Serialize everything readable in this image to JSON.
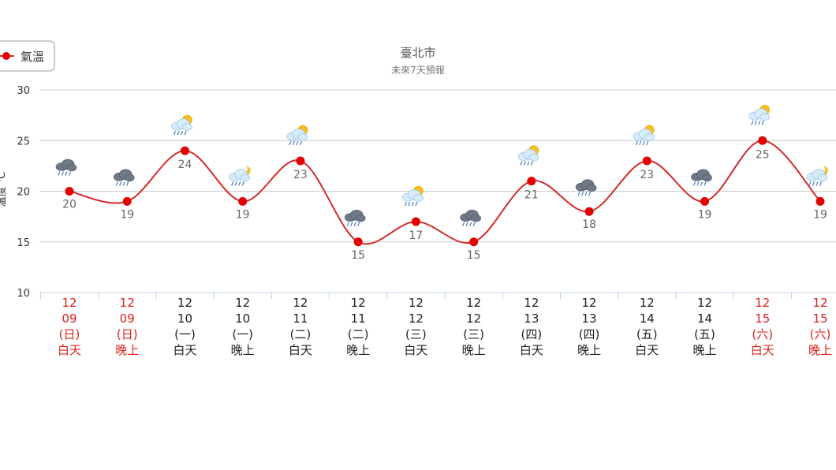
{
  "chart_data": {
    "type": "line",
    "title": "臺北市",
    "subtitle": "未來7天預報",
    "ylabel": "溫度 ℃",
    "ylim": [
      10,
      30
    ],
    "yticks": [
      10,
      15,
      20,
      25,
      30
    ],
    "legend": {
      "label": "氣溫",
      "position": "top-left"
    },
    "series": [
      {
        "name": "氣溫",
        "color": "#e20000",
        "line_color": "#d42a2a",
        "values": [
          20,
          19,
          24,
          19,
          23,
          15,
          17,
          15,
          21,
          18,
          23,
          19,
          25,
          19
        ]
      }
    ],
    "categories": [
      {
        "month": "12",
        "day": "09",
        "weekday": "(日)",
        "period": "白天",
        "weekend": true
      },
      {
        "month": "12",
        "day": "09",
        "weekday": "(日)",
        "period": "晚上",
        "weekend": true
      },
      {
        "month": "12",
        "day": "10",
        "weekday": "(一)",
        "period": "白天",
        "weekend": false
      },
      {
        "month": "12",
        "day": "10",
        "weekday": "(一)",
        "period": "晚上",
        "weekend": false
      },
      {
        "month": "12",
        "day": "11",
        "weekday": "(二)",
        "period": "白天",
        "weekend": false
      },
      {
        "month": "12",
        "day": "11",
        "weekday": "(二)",
        "period": "晚上",
        "weekend": false
      },
      {
        "month": "12",
        "day": "12",
        "weekday": "(三)",
        "period": "白天",
        "weekend": false
      },
      {
        "month": "12",
        "day": "12",
        "weekday": "(三)",
        "period": "晚上",
        "weekend": false
      },
      {
        "month": "12",
        "day": "13",
        "weekday": "(四)",
        "period": "白天",
        "weekend": false
      },
      {
        "month": "12",
        "day": "13",
        "weekday": "(四)",
        "period": "晚上",
        "weekend": false
      },
      {
        "month": "12",
        "day": "14",
        "weekday": "(五)",
        "period": "白天",
        "weekend": false
      },
      {
        "month": "12",
        "day": "14",
        "weekday": "(五)",
        "period": "晚上",
        "weekend": false
      },
      {
        "month": "12",
        "day": "15",
        "weekday": "(六)",
        "period": "白天",
        "weekend": true
      },
      {
        "month": "12",
        "day": "15",
        "weekday": "(六)",
        "period": "晚上",
        "weekend": true
      }
    ],
    "weather_icons": [
      "rain-cloud-icon",
      "rain-cloud-icon",
      "sun-cloud-rain-icon",
      "moon-cloud-rain-icon",
      "sun-cloud-rain-icon",
      "rain-cloud-icon",
      "sun-cloud-rain-icon",
      "rain-cloud-icon",
      "sun-cloud-rain-icon",
      "rain-cloud-icon",
      "sun-cloud-rain-icon",
      "rain-cloud-icon",
      "sun-cloud-rain-icon",
      "moon-cloud-rain-icon"
    ],
    "colors": {
      "weekend": "#e0201b",
      "weekday": "#222222",
      "grid": "#cccccc",
      "axis": "#c0d0e0"
    }
  }
}
